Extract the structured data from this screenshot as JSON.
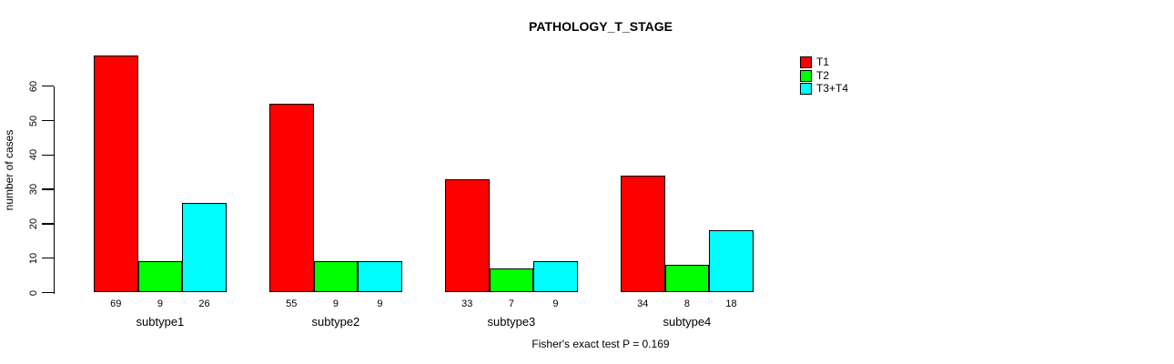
{
  "chart_data": {
    "type": "bar",
    "title": "PATHOLOGY_T_STAGE",
    "ylabel": "number of cases",
    "xlabel": "",
    "categories": [
      "subtype1",
      "subtype2",
      "subtype3",
      "subtype4"
    ],
    "series": [
      {
        "name": "T1",
        "color": "#ff0000",
        "values": [
          69,
          55,
          33,
          34
        ]
      },
      {
        "name": "T2",
        "color": "#00ff00",
        "values": [
          9,
          9,
          7,
          8
        ]
      },
      {
        "name": "T3+T4",
        "color": "#00ffff",
        "values": [
          26,
          9,
          9,
          18
        ]
      }
    ],
    "bar_value_labels": [
      [
        69,
        9,
        26
      ],
      [
        55,
        9,
        9
      ],
      [
        33,
        7,
        9
      ],
      [
        34,
        8,
        18
      ]
    ],
    "yticks": [
      0,
      10,
      20,
      30,
      40,
      50,
      60
    ],
    "ylim": [
      0,
      71
    ],
    "grid": false,
    "legend_position": "top-right",
    "annotation": "Fisher's exact test P = 0.169"
  },
  "colors": {
    "axis": "#000000",
    "background": "#ffffff",
    "t1": "#ff0000",
    "t2": "#00ff00",
    "t3_t4": "#00ffff"
  }
}
